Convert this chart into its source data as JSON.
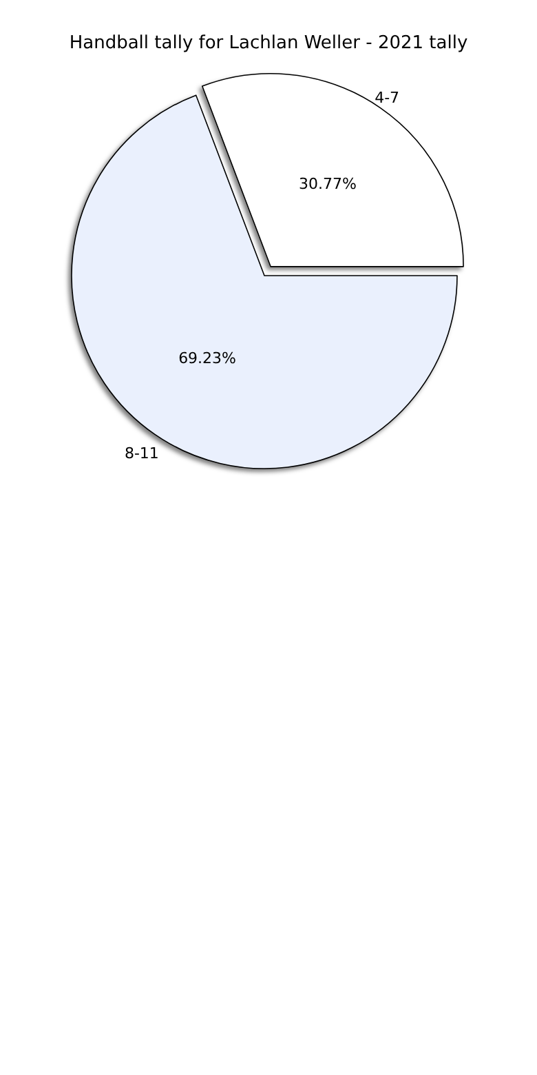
{
  "chart_data": {
    "type": "pie",
    "title": "Handball tally for Lachlan Weller - 2021 tally",
    "categories": [
      "4-7",
      "8-11"
    ],
    "values": [
      30.77,
      69.23
    ],
    "colors": [
      "#ffffff",
      "#eaf0fd"
    ],
    "value_labels": [
      "30.77%",
      "69.23%"
    ],
    "legend": false
  }
}
